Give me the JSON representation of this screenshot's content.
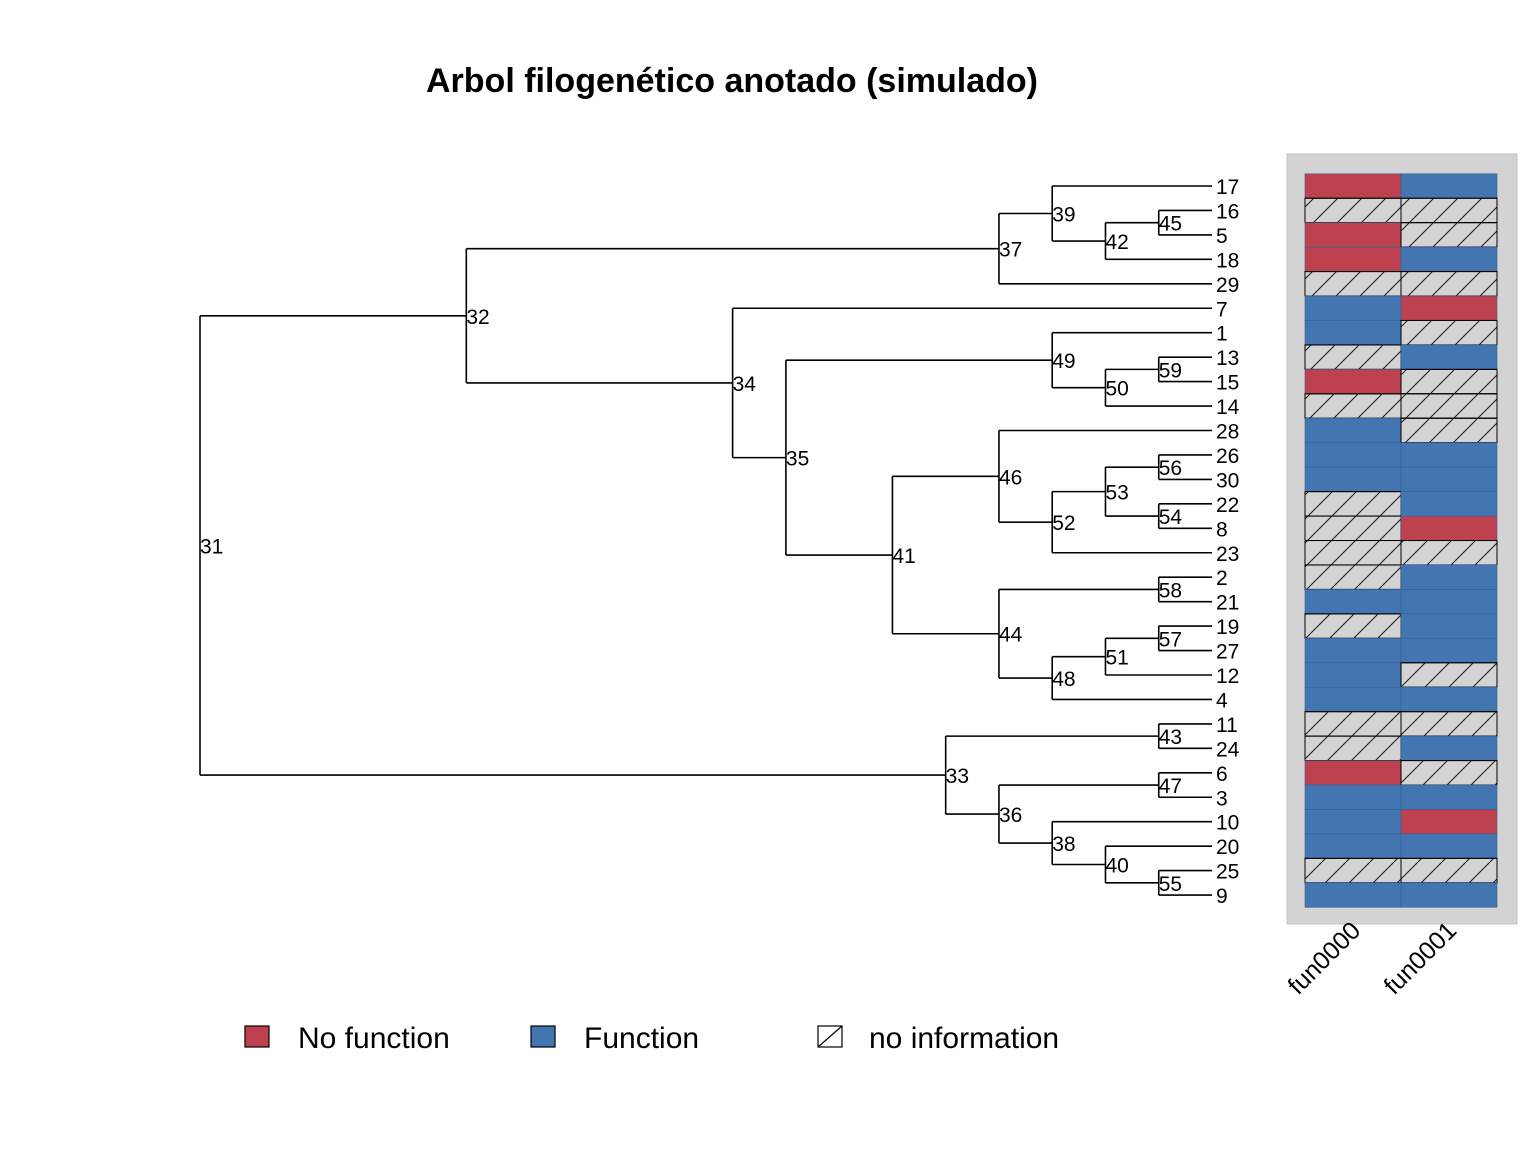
{
  "title": "Arbol filogenético anotado (simulado)",
  "colors": {
    "no_function": "#BE4150",
    "function": "#4376B1",
    "no_information": "#D3D3D3",
    "panel_bg": "#D3D3D3"
  },
  "tree": {
    "tip_order": [
      "17",
      "16",
      "5",
      "18",
      "29",
      "7",
      "1",
      "13",
      "15",
      "14",
      "28",
      "26",
      "30",
      "22",
      "8",
      "23",
      "2",
      "21",
      "19",
      "27",
      "12",
      "4",
      "11",
      "24",
      "6",
      "3",
      "10",
      "20",
      "25",
      "9"
    ],
    "nodes": {
      "31": {
        "depth": 0,
        "children": [
          "32",
          "33"
        ]
      },
      "32": {
        "depth": 1,
        "children": [
          "37",
          "34"
        ]
      },
      "37": {
        "depth": 3,
        "children": [
          "39",
          "29"
        ]
      },
      "39": {
        "depth": 3.2,
        "children": [
          "17",
          "42"
        ]
      },
      "42": {
        "depth": 3.4,
        "children": [
          "45",
          "18"
        ]
      },
      "45": {
        "depth": 3.6,
        "children": [
          "16",
          "5"
        ]
      },
      "34": {
        "depth": 2,
        "children": [
          "7",
          "35"
        ]
      },
      "35": {
        "depth": 2.2,
        "children": [
          "49",
          "41"
        ]
      },
      "49": {
        "depth": 3.2,
        "children": [
          "1",
          "50"
        ]
      },
      "50": {
        "depth": 3.4,
        "children": [
          "59",
          "14"
        ]
      },
      "59": {
        "depth": 3.6,
        "children": [
          "13",
          "15"
        ]
      },
      "41": {
        "depth": 2.6,
        "children": [
          "46",
          "44"
        ]
      },
      "46": {
        "depth": 3.0,
        "children": [
          "28",
          "52"
        ]
      },
      "52": {
        "depth": 3.2,
        "children": [
          "53",
          "23"
        ]
      },
      "53": {
        "depth": 3.4,
        "children": [
          "56",
          "54"
        ]
      },
      "56": {
        "depth": 3.6,
        "children": [
          "26",
          "30"
        ]
      },
      "54": {
        "depth": 3.6,
        "children": [
          "22",
          "8"
        ]
      },
      "44": {
        "depth": 3.0,
        "children": [
          "58",
          "48"
        ]
      },
      "58": {
        "depth": 3.6,
        "children": [
          "2",
          "21"
        ]
      },
      "48": {
        "depth": 3.2,
        "children": [
          "51",
          "4"
        ]
      },
      "51": {
        "depth": 3.4,
        "children": [
          "57",
          "12"
        ]
      },
      "57": {
        "depth": 3.6,
        "children": [
          "19",
          "27"
        ]
      },
      "33": {
        "depth": 2.8,
        "children": [
          "43",
          "36"
        ]
      },
      "43": {
        "depth": 3.6,
        "children": [
          "11",
          "24"
        ]
      },
      "36": {
        "depth": 3.0,
        "children": [
          "47",
          "38"
        ]
      },
      "47": {
        "depth": 3.6,
        "children": [
          "6",
          "3"
        ]
      },
      "38": {
        "depth": 3.2,
        "children": [
          "10",
          "40"
        ]
      },
      "40": {
        "depth": 3.4,
        "children": [
          "20",
          "55"
        ]
      },
      "55": {
        "depth": 3.6,
        "children": [
          "25",
          "9"
        ]
      }
    },
    "tip_depth": 3.8
  },
  "annotations": {
    "columns": [
      "fun0000",
      "fun0001"
    ],
    "rows": [
      [
        "no",
        "fn"
      ],
      [
        "na",
        "na"
      ],
      [
        "no",
        "na"
      ],
      [
        "no",
        "fn"
      ],
      [
        "na",
        "na"
      ],
      [
        "fn",
        "no"
      ],
      [
        "fn",
        "na"
      ],
      [
        "na",
        "fn"
      ],
      [
        "no",
        "na"
      ],
      [
        "na",
        "na"
      ],
      [
        "fn",
        "na"
      ],
      [
        "fn",
        "fn"
      ],
      [
        "fn",
        "fn"
      ],
      [
        "na",
        "fn"
      ],
      [
        "na",
        "no"
      ],
      [
        "na",
        "na"
      ],
      [
        "na",
        "fn"
      ],
      [
        "fn",
        "fn"
      ],
      [
        "na",
        "fn"
      ],
      [
        "fn",
        "fn"
      ],
      [
        "fn",
        "na"
      ],
      [
        "fn",
        "fn"
      ],
      [
        "na",
        "na"
      ],
      [
        "na",
        "fn"
      ],
      [
        "no",
        "na"
      ],
      [
        "fn",
        "fn"
      ],
      [
        "fn",
        "no"
      ],
      [
        "fn",
        "fn"
      ],
      [
        "na",
        "na"
      ],
      [
        "fn",
        "fn"
      ]
    ]
  },
  "legend": {
    "no_function": "No function",
    "function": "Function",
    "no_information": "no information"
  }
}
